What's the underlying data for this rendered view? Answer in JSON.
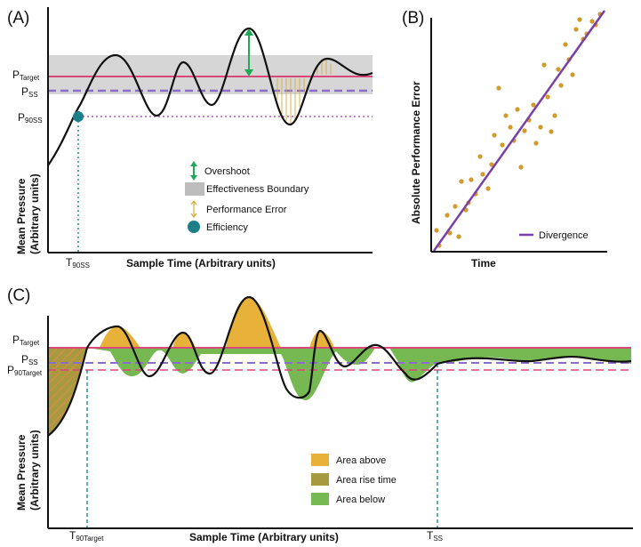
{
  "panel_a": {
    "panel_label": "(A)",
    "y_axis_label_1": "Mean Pressure",
    "y_axis_label_2": "(Arbitrary units)",
    "x_axis_label": "Sample Time (Arbitrary units)",
    "p_target_main": "P",
    "p_target_sub": "Target",
    "p_ss_main": "P",
    "p_ss_sub": "SS",
    "p_90ss_main": "P",
    "p_90ss_sub": "90SS",
    "t_90ss_main": "T",
    "t_90ss_sub": "90SS",
    "legend": {
      "overshoot": "Overshoot",
      "effectiveness_boundary": "Effectiveness Boundary",
      "performance_error": "Performance Error",
      "efficiency": "Efficiency"
    }
  },
  "panel_b": {
    "panel_label": "(B)",
    "y_axis_label": "Absolute Performance Error",
    "x_axis_label": "Time",
    "legend_divergence": "Divergence"
  },
  "panel_c": {
    "panel_label": "(C)",
    "y_axis_label_1": "Mean Pressure",
    "y_axis_label_2": "(Arbitrary units)",
    "x_axis_label": "Sample Time (Arbitrary units)",
    "p_target_main": "P",
    "p_target_sub": "Target",
    "p_ss_main": "P",
    "p_ss_sub": "SS",
    "p_90target_main": "P",
    "p_90target_sub": "90Target",
    "t_90target_main": "T",
    "t_90target_sub": "90Target",
    "t_ss_main": "T",
    "t_ss_sub": "SS",
    "legend": {
      "area_above": "Area above",
      "area_rise_time": "Area rise time",
      "area_below": "Area below"
    }
  },
  "colors": {
    "target": "#d9487a",
    "steady_state": "#8a6fc4",
    "p90_dotted": "#b05ab8",
    "overshoot_arrow": "#1fa855",
    "effectiveness_band": "#d6d6d6",
    "performance_error": "#d9a93a",
    "efficiency_dot": "#1a7f86",
    "t90_line": "#2a8fa8",
    "scatter": "#d19a2b",
    "divergence": "#7a3fa8",
    "area_above": "#e8b23a",
    "area_rise": "#a79a3e",
    "area_below": "#76b852"
  }
}
